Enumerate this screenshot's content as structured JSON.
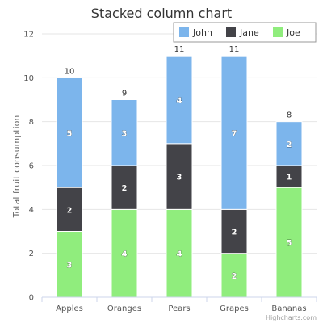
{
  "chart_data": {
    "type": "bar",
    "stacked": true,
    "title": "Stacked column chart",
    "xlabel": "",
    "ylabel": "Total fruit consumption",
    "ylim": [
      0,
      12
    ],
    "yticks": [
      0,
      2,
      4,
      6,
      8,
      10,
      12
    ],
    "categories": [
      "Apples",
      "Oranges",
      "Pears",
      "Grapes",
      "Bananas"
    ],
    "series": [
      {
        "name": "John",
        "color": "#7cb5ec",
        "values": [
          5,
          3,
          4,
          7,
          2
        ]
      },
      {
        "name": "Jane",
        "color": "#434348",
        "values": [
          2,
          2,
          3,
          2,
          1
        ]
      },
      {
        "name": "Joe",
        "color": "#90ed7d",
        "values": [
          3,
          4,
          4,
          2,
          5
        ]
      }
    ],
    "totals": [
      10,
      9,
      11,
      11,
      8
    ],
    "legend": "top-right",
    "grid": true
  },
  "credits": "Highcharts.com"
}
